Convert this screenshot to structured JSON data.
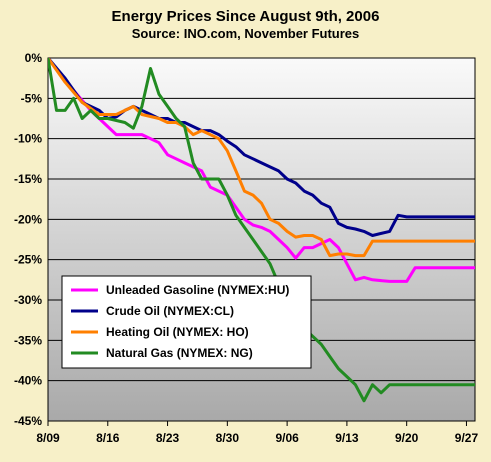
{
  "chart_data": {
    "type": "line",
    "title": "Energy Prices Since August 9th, 2006",
    "subtitle": "Source: INO.com, November Futures",
    "xlabel": "",
    "ylabel": "",
    "x_tick_labels": [
      "8/09",
      "8/16",
      "8/23",
      "8/30",
      "9/06",
      "9/13",
      "9/20",
      "9/27"
    ],
    "y_tick_labels": [
      "0%",
      "-5%",
      "-10%",
      "-15%",
      "-20%",
      "-25%",
      "-30%",
      "-35%",
      "-40%",
      "-45%"
    ],
    "ylim": [
      -45,
      0
    ],
    "xlim": [
      0,
      50
    ],
    "grid": "horizontal",
    "legend_position": "lower-left",
    "colors": {
      "plot_background_top": "#fafafa",
      "plot_background_bottom": "#a9a9a9",
      "page_background": "#f7f0c8",
      "gridline": "#000000"
    },
    "series": [
      {
        "name": "Unleaded Gasoline (NYMEX:HU)",
        "color": "#ff00ff",
        "x": [
          0,
          3,
          5,
          6,
          7,
          8,
          9,
          10,
          11,
          13,
          14,
          15,
          16,
          17,
          18,
          19,
          20,
          21,
          22,
          23,
          24,
          25,
          26,
          27,
          28,
          29,
          30,
          31,
          32,
          33,
          34,
          35,
          36,
          37,
          38,
          40,
          41,
          42,
          43,
          44,
          45,
          46,
          47,
          48,
          49,
          50
        ],
        "y": [
          0,
          -4.0,
          -6.5,
          -7.5,
          -8.5,
          -9.5,
          -9.5,
          -9.5,
          -9.5,
          -10.5,
          -12.0,
          -12.5,
          -13.0,
          -13.5,
          -14.0,
          -16.0,
          -16.5,
          -17.0,
          -18.5,
          -20.0,
          -20.7,
          -21.0,
          -21.5,
          -22.5,
          -23.5,
          -24.8,
          -23.5,
          -23.5,
          -23.0,
          -22.5,
          -23.5,
          -25.5,
          -27.5,
          -27.2,
          -27.5,
          -27.7,
          -27.7,
          -27.7,
          -26.0,
          -26.0,
          -26.0,
          -26.0,
          -26.0,
          -26.0,
          -26.0,
          -26.0
        ]
      },
      {
        "name": "Crude Oil (NYMEX:CL)",
        "color": "#00008b",
        "x": [
          0,
          2,
          4,
          6,
          7,
          8,
          9,
          10,
          11,
          13,
          14,
          15,
          16,
          17,
          18,
          19,
          20,
          21,
          22,
          23,
          24,
          25,
          26,
          27,
          28,
          29,
          30,
          31,
          32,
          33,
          34,
          35,
          36,
          37,
          38,
          40,
          41,
          42,
          43,
          44,
          45,
          46,
          47,
          48,
          49,
          50
        ],
        "y": [
          0,
          -2.5,
          -5.5,
          -6.5,
          -7.5,
          -7.3,
          -6.5,
          -6.0,
          -6.5,
          -7.5,
          -7.5,
          -8.0,
          -8.0,
          -8.5,
          -9.0,
          -9.0,
          -9.5,
          -10.3,
          -11.0,
          -12.0,
          -12.5,
          -13.0,
          -13.5,
          -14.0,
          -15.0,
          -15.5,
          -16.5,
          -17.0,
          -18.0,
          -18.5,
          -20.5,
          -21.0,
          -21.2,
          -21.5,
          -22.0,
          -21.5,
          -19.5,
          -19.7,
          -19.7,
          -19.7,
          -19.7,
          -19.7,
          -19.7,
          -19.7,
          -19.7,
          -19.7
        ]
      },
      {
        "name": "Heating Oil (NYMEX: HO)",
        "color": "#ff7f00",
        "x": [
          0,
          2,
          4,
          6,
          7,
          8,
          9,
          10,
          11,
          13,
          14,
          15,
          16,
          17,
          18,
          19,
          20,
          21,
          22,
          23,
          24,
          25,
          26,
          27,
          28,
          29,
          30,
          31,
          32,
          33,
          34,
          35,
          36,
          37,
          38,
          40,
          41,
          42,
          43,
          44,
          45,
          46,
          47,
          48,
          49,
          50
        ],
        "y": [
          0,
          -3.0,
          -5.5,
          -7.0,
          -7.0,
          -7.0,
          -6.5,
          -6.0,
          -7.0,
          -7.5,
          -8.0,
          -8.0,
          -8.5,
          -9.5,
          -9.0,
          -9.5,
          -10.0,
          -11.5,
          -14.0,
          -16.5,
          -17.0,
          -18.0,
          -20.0,
          -20.5,
          -21.5,
          -22.2,
          -22.0,
          -22.0,
          -22.5,
          -24.5,
          -24.3,
          -24.3,
          -24.5,
          -24.5,
          -22.7,
          -22.7,
          -22.7,
          -22.7,
          -22.7,
          -22.7,
          -22.7,
          -22.7,
          -22.7,
          -22.7,
          -22.7,
          -22.7
        ]
      },
      {
        "name": "Natural Gas (NYMEX: NG)",
        "color": "#228b22",
        "x": [
          0,
          1,
          2,
          3,
          4,
          5,
          6,
          7,
          9,
          10,
          11,
          12,
          13,
          14,
          15,
          16,
          17,
          18,
          19,
          20,
          21,
          22,
          23,
          24,
          25,
          26,
          27,
          28,
          29,
          30,
          31,
          32,
          33,
          34,
          35,
          36,
          37,
          38,
          39,
          40,
          41,
          42,
          43,
          44,
          45,
          46,
          47,
          48,
          49,
          50
        ],
        "y": [
          0,
          -6.5,
          -6.5,
          -5.0,
          -7.5,
          -6.5,
          -7.5,
          -7.5,
          -8.0,
          -8.7,
          -6.0,
          -1.3,
          -4.5,
          -6.0,
          -7.5,
          -8.5,
          -13.0,
          -15.0,
          -15.0,
          -15.0,
          -17.0,
          -19.5,
          -21.0,
          -22.5,
          -24.0,
          -25.5,
          -28.0,
          -30.5,
          -33.0,
          -33.5,
          -34.5,
          -35.5,
          -37.0,
          -38.5,
          -39.5,
          -40.5,
          -42.5,
          -40.5,
          -41.5,
          -40.5,
          -40.5,
          -40.5,
          -40.5,
          -40.5,
          -40.5,
          -40.5,
          -40.5,
          -40.5,
          -40.5,
          -40.5
        ]
      }
    ]
  }
}
